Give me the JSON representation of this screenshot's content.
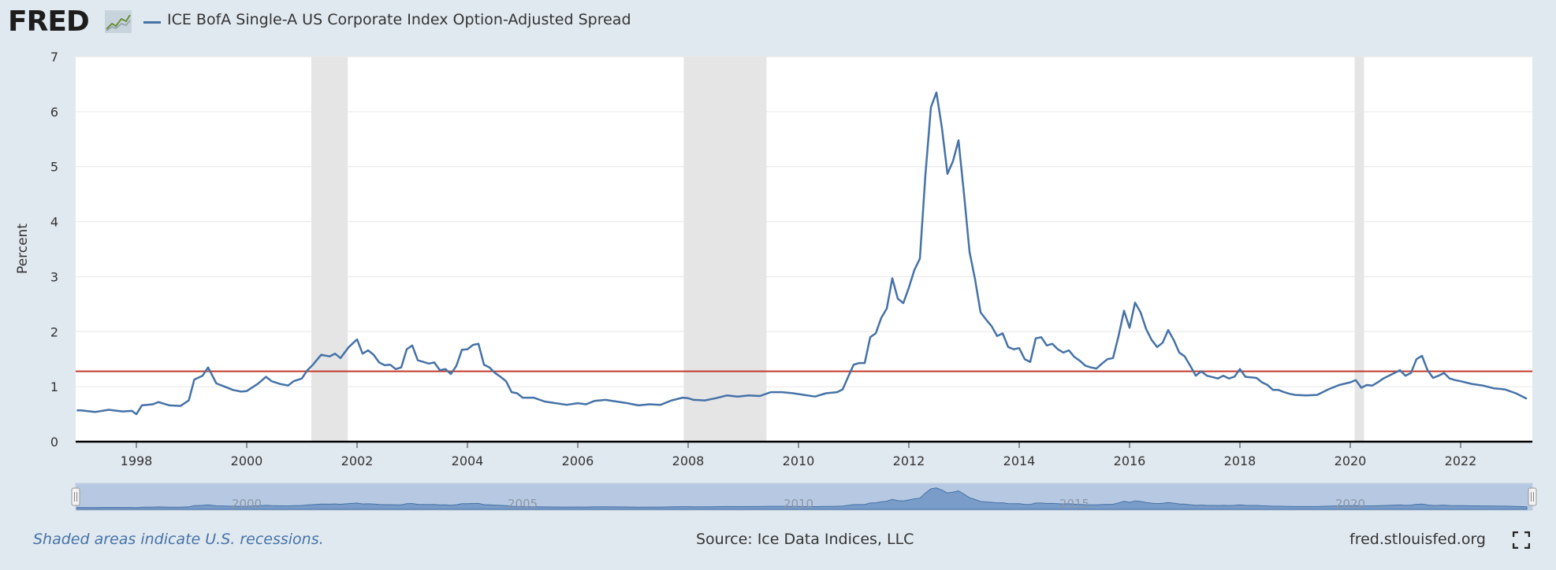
{
  "brand": {
    "logo_text": "FRED",
    "logo_icon": "chart-line-icon"
  },
  "legend": {
    "series_name": "ICE BofA Single-A US Corporate Index Option-Adjusted Spread",
    "color": "#4572a7"
  },
  "footer": {
    "note": "Shaded areas indicate U.S. recessions.",
    "source": "Source: Ice Data Indices, LLC",
    "site": "fred.stlouisfed.org",
    "fullscreen_icon": "fullscreen-icon"
  },
  "chart_data": {
    "type": "line",
    "ylabel": "Percent",
    "ylim": [
      0,
      7
    ],
    "yticks": [
      "0",
      "1",
      "2",
      "3",
      "4",
      "5",
      "6",
      "7"
    ],
    "xlim": [
      1996.9,
      2023.3
    ],
    "xticks": [
      "1998",
      "2000",
      "2002",
      "2004",
      "2006",
      "2008",
      "2010",
      "2012",
      "2014",
      "2016",
      "2018",
      "2020",
      "2022"
    ],
    "navigator_ticks": [
      "2000",
      "2005",
      "2010",
      "2015",
      "2020"
    ],
    "reference_line": {
      "value": 1.28,
      "color": "#c0392b"
    },
    "recessions": [
      [
        2001.17,
        2001.83
      ],
      [
        2007.92,
        2009.42
      ],
      [
        2020.08,
        2020.25
      ]
    ],
    "grid": true,
    "series": [
      {
        "name": "ICE BofA Single-A US Corporate Index Option-Adjusted Spread",
        "color": "#4572a7",
        "points": [
          [
            1996.92,
            0.57
          ],
          [
            1997.0,
            0.57
          ],
          [
            1997.25,
            0.54
          ],
          [
            1997.5,
            0.58
          ],
          [
            1997.75,
            0.55
          ],
          [
            1997.92,
            0.56
          ],
          [
            1998.0,
            0.5
          ],
          [
            1998.1,
            0.66
          ],
          [
            1998.3,
            0.68
          ],
          [
            1998.4,
            0.72
          ],
          [
            1998.6,
            0.66
          ],
          [
            1998.8,
            0.65
          ],
          [
            1998.95,
            0.75
          ],
          [
            1999.05,
            1.13
          ],
          [
            1999.2,
            1.2
          ],
          [
            1999.3,
            1.35
          ],
          [
            1999.45,
            1.06
          ],
          [
            1999.6,
            1.0
          ],
          [
            1999.75,
            0.94
          ],
          [
            1999.9,
            0.91
          ],
          [
            2000.0,
            0.92
          ],
          [
            2000.2,
            1.05
          ],
          [
            2000.35,
            1.18
          ],
          [
            2000.45,
            1.1
          ],
          [
            2000.6,
            1.05
          ],
          [
            2000.75,
            1.02
          ],
          [
            2000.85,
            1.1
          ],
          [
            2001.0,
            1.15
          ],
          [
            2001.1,
            1.3
          ],
          [
            2001.2,
            1.4
          ],
          [
            2001.35,
            1.58
          ],
          [
            2001.5,
            1.55
          ],
          [
            2001.6,
            1.6
          ],
          [
            2001.7,
            1.52
          ],
          [
            2001.85,
            1.72
          ],
          [
            2002.0,
            1.86
          ],
          [
            2002.1,
            1.6
          ],
          [
            2002.2,
            1.66
          ],
          [
            2002.3,
            1.58
          ],
          [
            2002.4,
            1.44
          ],
          [
            2002.5,
            1.39
          ],
          [
            2002.6,
            1.4
          ],
          [
            2002.7,
            1.32
          ],
          [
            2002.8,
            1.35
          ],
          [
            2002.9,
            1.68
          ],
          [
            2003.0,
            1.75
          ],
          [
            2003.1,
            1.48
          ],
          [
            2003.2,
            1.45
          ],
          [
            2003.3,
            1.42
          ],
          [
            2003.4,
            1.44
          ],
          [
            2003.5,
            1.3
          ],
          [
            2003.6,
            1.32
          ],
          [
            2003.7,
            1.23
          ],
          [
            2003.8,
            1.38
          ],
          [
            2003.9,
            1.67
          ],
          [
            2004.0,
            1.68
          ],
          [
            2004.1,
            1.76
          ],
          [
            2004.2,
            1.78
          ],
          [
            2004.3,
            1.4
          ],
          [
            2004.4,
            1.35
          ],
          [
            2004.5,
            1.25
          ],
          [
            2004.6,
            1.18
          ],
          [
            2004.7,
            1.1
          ],
          [
            2004.8,
            0.9
          ],
          [
            2004.9,
            0.88
          ],
          [
            2005.0,
            0.8
          ],
          [
            2005.2,
            0.8
          ],
          [
            2005.4,
            0.73
          ],
          [
            2005.6,
            0.7
          ],
          [
            2005.8,
            0.67
          ],
          [
            2006.0,
            0.7
          ],
          [
            2006.15,
            0.68
          ],
          [
            2006.3,
            0.74
          ],
          [
            2006.5,
            0.76
          ],
          [
            2006.7,
            0.73
          ],
          [
            2006.9,
            0.7
          ],
          [
            2007.1,
            0.66
          ],
          [
            2007.3,
            0.68
          ],
          [
            2007.5,
            0.67
          ],
          [
            2007.7,
            0.75
          ],
          [
            2007.9,
            0.8
          ],
          [
            2008.0,
            0.79
          ],
          [
            2008.1,
            0.76
          ],
          [
            2008.3,
            0.75
          ],
          [
            2008.5,
            0.79
          ],
          [
            2008.7,
            0.84
          ],
          [
            2008.9,
            0.82
          ],
          [
            2009.1,
            0.84
          ],
          [
            2009.3,
            0.83
          ],
          [
            2009.5,
            0.9
          ],
          [
            2009.7,
            0.9
          ],
          [
            2009.9,
            0.88
          ],
          [
            2010.1,
            0.85
          ],
          [
            2010.3,
            0.82
          ],
          [
            2010.5,
            0.88
          ],
          [
            2010.7,
            0.9
          ],
          [
            2010.8,
            0.95
          ],
          [
            2010.9,
            1.18
          ],
          [
            2011.0,
            1.4
          ],
          [
            2011.1,
            1.43
          ],
          [
            2011.2,
            1.43
          ],
          [
            2011.3,
            1.9
          ],
          [
            2011.4,
            1.97
          ],
          [
            2011.5,
            2.25
          ],
          [
            2011.6,
            2.42
          ],
          [
            2011.7,
            2.97
          ],
          [
            2011.8,
            2.6
          ],
          [
            2011.9,
            2.52
          ],
          [
            2012.0,
            2.8
          ],
          [
            2012.1,
            3.12
          ],
          [
            2012.2,
            3.33
          ],
          [
            2012.3,
            4.85
          ],
          [
            2012.4,
            6.08
          ],
          [
            2012.5,
            6.35
          ],
          [
            2012.6,
            5.7
          ],
          [
            2012.7,
            4.87
          ],
          [
            2012.8,
            5.1
          ],
          [
            2012.9,
            5.48
          ],
          [
            2013.0,
            4.5
          ],
          [
            2013.1,
            3.45
          ],
          [
            2013.2,
            2.95
          ],
          [
            2013.3,
            2.35
          ],
          [
            2013.4,
            2.22
          ],
          [
            2013.5,
            2.1
          ],
          [
            2013.6,
            1.92
          ],
          [
            2013.7,
            1.97
          ],
          [
            2013.8,
            1.72
          ],
          [
            2013.9,
            1.68
          ],
          [
            2014.0,
            1.7
          ],
          [
            2014.1,
            1.5
          ],
          [
            2014.2,
            1.45
          ],
          [
            2014.3,
            1.88
          ],
          [
            2014.4,
            1.9
          ],
          [
            2014.5,
            1.75
          ],
          [
            2014.6,
            1.78
          ],
          [
            2014.7,
            1.68
          ],
          [
            2014.8,
            1.62
          ],
          [
            2014.9,
            1.66
          ],
          [
            2015.0,
            1.54
          ],
          [
            2015.1,
            1.47
          ],
          [
            2015.2,
            1.38
          ],
          [
            2015.3,
            1.35
          ],
          [
            2015.4,
            1.33
          ],
          [
            2015.5,
            1.42
          ],
          [
            2015.6,
            1.5
          ],
          [
            2015.7,
            1.52
          ],
          [
            2015.8,
            1.92
          ],
          [
            2015.9,
            2.38
          ],
          [
            2016.0,
            2.07
          ],
          [
            2016.1,
            2.53
          ],
          [
            2016.2,
            2.35
          ],
          [
            2016.3,
            2.05
          ],
          [
            2016.4,
            1.85
          ],
          [
            2016.5,
            1.72
          ],
          [
            2016.6,
            1.8
          ],
          [
            2016.7,
            2.03
          ],
          [
            2016.8,
            1.85
          ],
          [
            2016.9,
            1.62
          ],
          [
            2017.0,
            1.55
          ],
          [
            2017.1,
            1.38
          ],
          [
            2017.2,
            1.2
          ],
          [
            2017.3,
            1.28
          ],
          [
            2017.4,
            1.2
          ],
          [
            2017.6,
            1.15
          ],
          [
            2017.7,
            1.2
          ],
          [
            2017.8,
            1.15
          ],
          [
            2017.9,
            1.18
          ],
          [
            2018.0,
            1.32
          ],
          [
            2018.1,
            1.18
          ],
          [
            2018.3,
            1.16
          ],
          [
            2018.4,
            1.08
          ],
          [
            2018.5,
            1.03
          ],
          [
            2018.6,
            0.94
          ],
          [
            2018.7,
            0.94
          ],
          [
            2018.8,
            0.9
          ],
          [
            2018.9,
            0.87
          ],
          [
            2019.0,
            0.85
          ],
          [
            2019.2,
            0.84
          ],
          [
            2019.4,
            0.85
          ],
          [
            2019.6,
            0.95
          ],
          [
            2019.8,
            1.03
          ],
          [
            2020.0,
            1.08
          ],
          [
            2020.1,
            1.12
          ],
          [
            2020.2,
            0.98
          ],
          [
            2020.3,
            1.03
          ],
          [
            2020.4,
            1.02
          ],
          [
            2020.5,
            1.08
          ],
          [
            2020.6,
            1.15
          ],
          [
            2020.8,
            1.25
          ],
          [
            2020.9,
            1.3
          ],
          [
            2021.0,
            1.2
          ],
          [
            2021.1,
            1.25
          ],
          [
            2021.2,
            1.5
          ],
          [
            2021.3,
            1.56
          ],
          [
            2021.4,
            1.3
          ],
          [
            2021.5,
            1.16
          ],
          [
            2021.6,
            1.2
          ],
          [
            2021.7,
            1.25
          ],
          [
            2021.8,
            1.15
          ],
          [
            2021.9,
            1.12
          ],
          [
            2022.0,
            1.1
          ],
          [
            2022.2,
            1.05
          ],
          [
            2022.4,
            1.02
          ],
          [
            2022.6,
            0.97
          ],
          [
            2022.8,
            0.95
          ],
          [
            2023.0,
            0.88
          ],
          [
            2023.2,
            0.78
          ]
        ]
      }
    ]
  }
}
